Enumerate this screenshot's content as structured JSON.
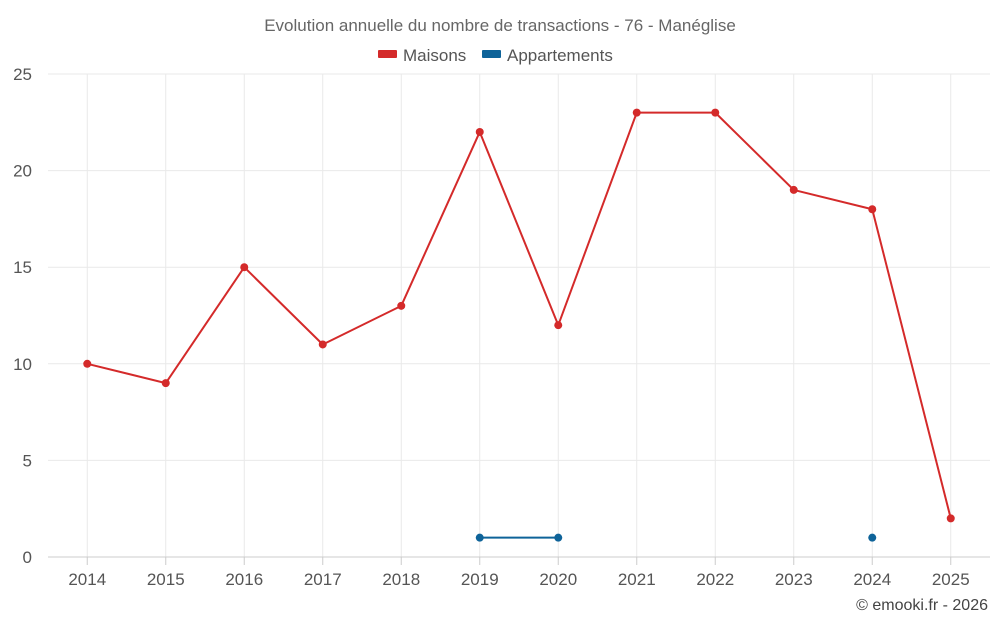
{
  "chart_data": {
    "type": "line",
    "title": "Evolution annuelle du nombre de transactions - 76 - Manéglise",
    "categories": [
      "2014",
      "2015",
      "2016",
      "2017",
      "2018",
      "2019",
      "2020",
      "2021",
      "2022",
      "2023",
      "2024",
      "2025"
    ],
    "ylim": [
      0,
      25
    ],
    "yticks": [
      0,
      5,
      10,
      15,
      20,
      25
    ],
    "grid": true,
    "legend_position": "top-center",
    "series": [
      {
        "name": "Maisons",
        "color": "#d42a2a",
        "values": [
          10,
          9,
          15,
          11,
          13,
          22,
          12,
          23,
          23,
          19,
          18,
          2
        ]
      },
      {
        "name": "Appartements",
        "color": "#0e6399",
        "values": [
          null,
          null,
          null,
          null,
          null,
          1,
          1,
          null,
          null,
          null,
          1,
          null
        ]
      }
    ],
    "credit": "© emooki.fr - 2026"
  }
}
